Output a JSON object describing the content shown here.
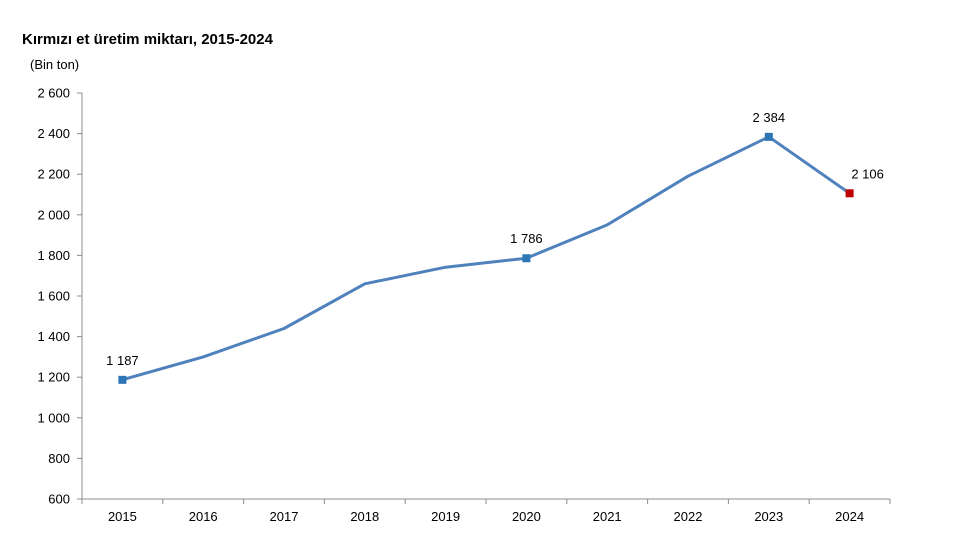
{
  "chart_data": {
    "type": "line",
    "title": "Kırmızı et üretim miktarı, 2015-2024",
    "ylabel": "(Bin ton)",
    "xlabel": "",
    "categories": [
      "2015",
      "2016",
      "2017",
      "2018",
      "2019",
      "2020",
      "2021",
      "2022",
      "2023",
      "2024"
    ],
    "series": [
      {
        "values": [
          1187,
          1300,
          1440,
          1660,
          1742,
          1786,
          1950,
          2190,
          2384,
          2106
        ],
        "color": "#4f81bd"
      }
    ],
    "ylim": [
      600,
      2600
    ],
    "yticks": [
      600,
      800,
      1000,
      1200,
      1400,
      1600,
      1800,
      2000,
      2200,
      2400,
      2600
    ],
    "ytick_labels": [
      "600",
      "800",
      "1 000",
      "1 200",
      "1 400",
      "1 600",
      "1 800",
      "2 000",
      "2 200",
      "2 400",
      "2 600"
    ],
    "markers": [
      {
        "index": 0,
        "label": "1 187",
        "color": "#2e75b6"
      },
      {
        "index": 5,
        "label": "1 786",
        "color": "#2e75b6"
      },
      {
        "index": 8,
        "label": "2 384",
        "color": "#2e75b6"
      },
      {
        "index": 9,
        "label": "2 106",
        "color": "#c00000"
      }
    ],
    "grid": false,
    "legend": "none"
  }
}
